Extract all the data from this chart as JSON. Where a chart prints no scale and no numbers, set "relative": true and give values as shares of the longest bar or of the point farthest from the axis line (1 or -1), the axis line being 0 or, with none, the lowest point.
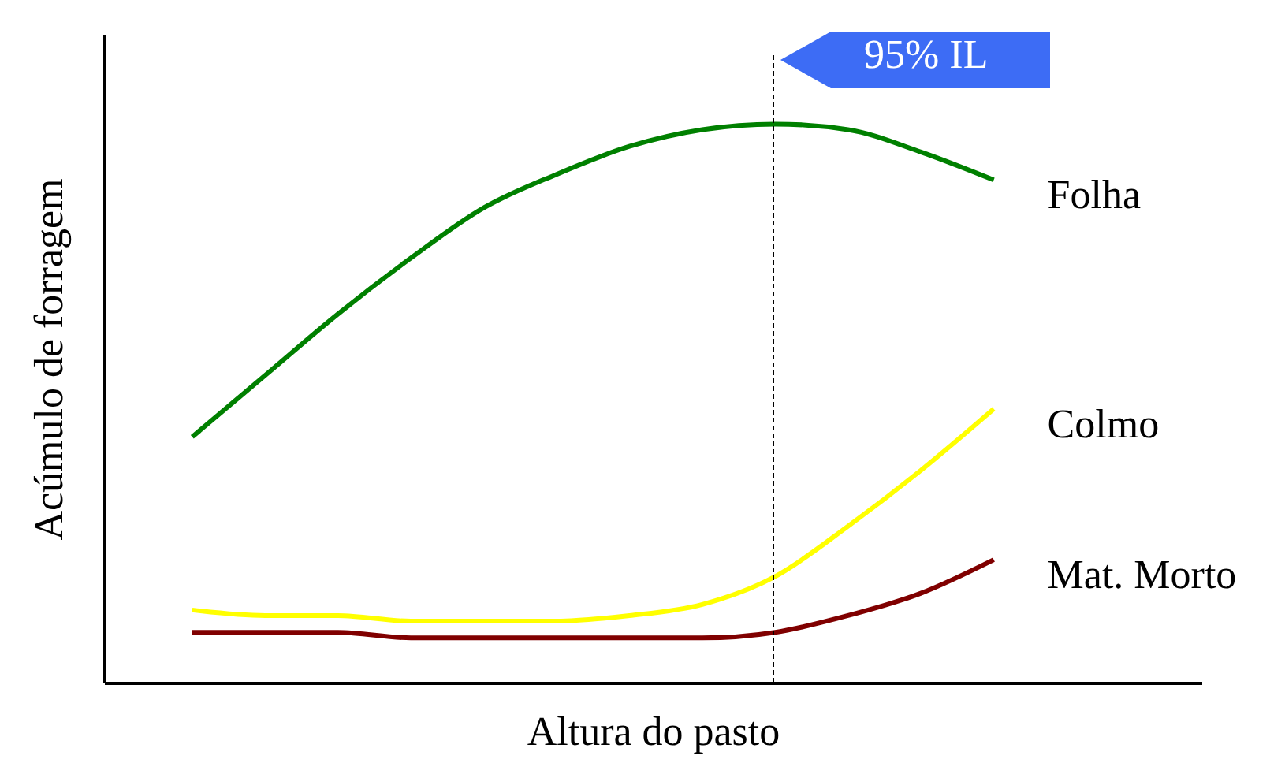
{
  "chart_data": {
    "type": "line",
    "relative": true,
    "xlabel": "Altura do pasto",
    "ylabel": "Acúmulo de forragem",
    "categories": [
      null,
      null,
      null,
      null,
      null,
      null,
      null,
      null,
      null,
      null,
      null,
      null
    ],
    "series": [
      {
        "name": "Folha",
        "color": "#008000",
        "values": [
          0.44,
          0.55,
          0.66,
          0.76,
          0.85,
          0.91,
          0.96,
          0.99,
          1.0,
          0.99,
          0.95,
          0.9
        ]
      },
      {
        "name": "Colmo",
        "color": "#ffff00",
        "values": [
          0.13,
          0.12,
          0.12,
          0.11,
          0.11,
          0.11,
          0.12,
          0.14,
          0.19,
          0.28,
          0.38,
          0.49
        ]
      },
      {
        "name": "Mat. Morto",
        "color": "#800000",
        "values": [
          0.09,
          0.09,
          0.09,
          0.08,
          0.08,
          0.08,
          0.08,
          0.08,
          0.09,
          0.12,
          0.16,
          0.22
        ]
      }
    ],
    "annotations": [
      "95% IL"
    ],
    "grid": false,
    "legend": false,
    "marker": "none",
    "line_style": "solid"
  }
}
